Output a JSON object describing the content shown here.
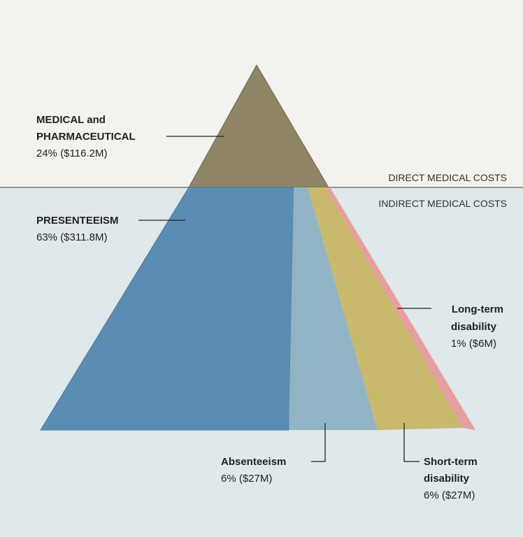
{
  "bands": {
    "direct": "DIRECT MEDICAL COSTS",
    "indirect": "INDIRECT MEDICAL COSTS"
  },
  "segments": [
    {
      "name": [
        "MEDICAL and",
        "PHARMACEUTICAL"
      ],
      "value": "24% ($116.2M)"
    },
    {
      "name": [
        "PRESENTEEISM"
      ],
      "value": "63% ($311.8M)"
    },
    {
      "name": [
        "Long-term",
        "disability"
      ],
      "value": "1% ($6M)"
    },
    {
      "name": [
        "Absenteeism"
      ],
      "value": "6% ($27M)"
    },
    {
      "name": [
        "Short-term",
        "disability"
      ],
      "value": "6% ($27M)"
    }
  ]
}
